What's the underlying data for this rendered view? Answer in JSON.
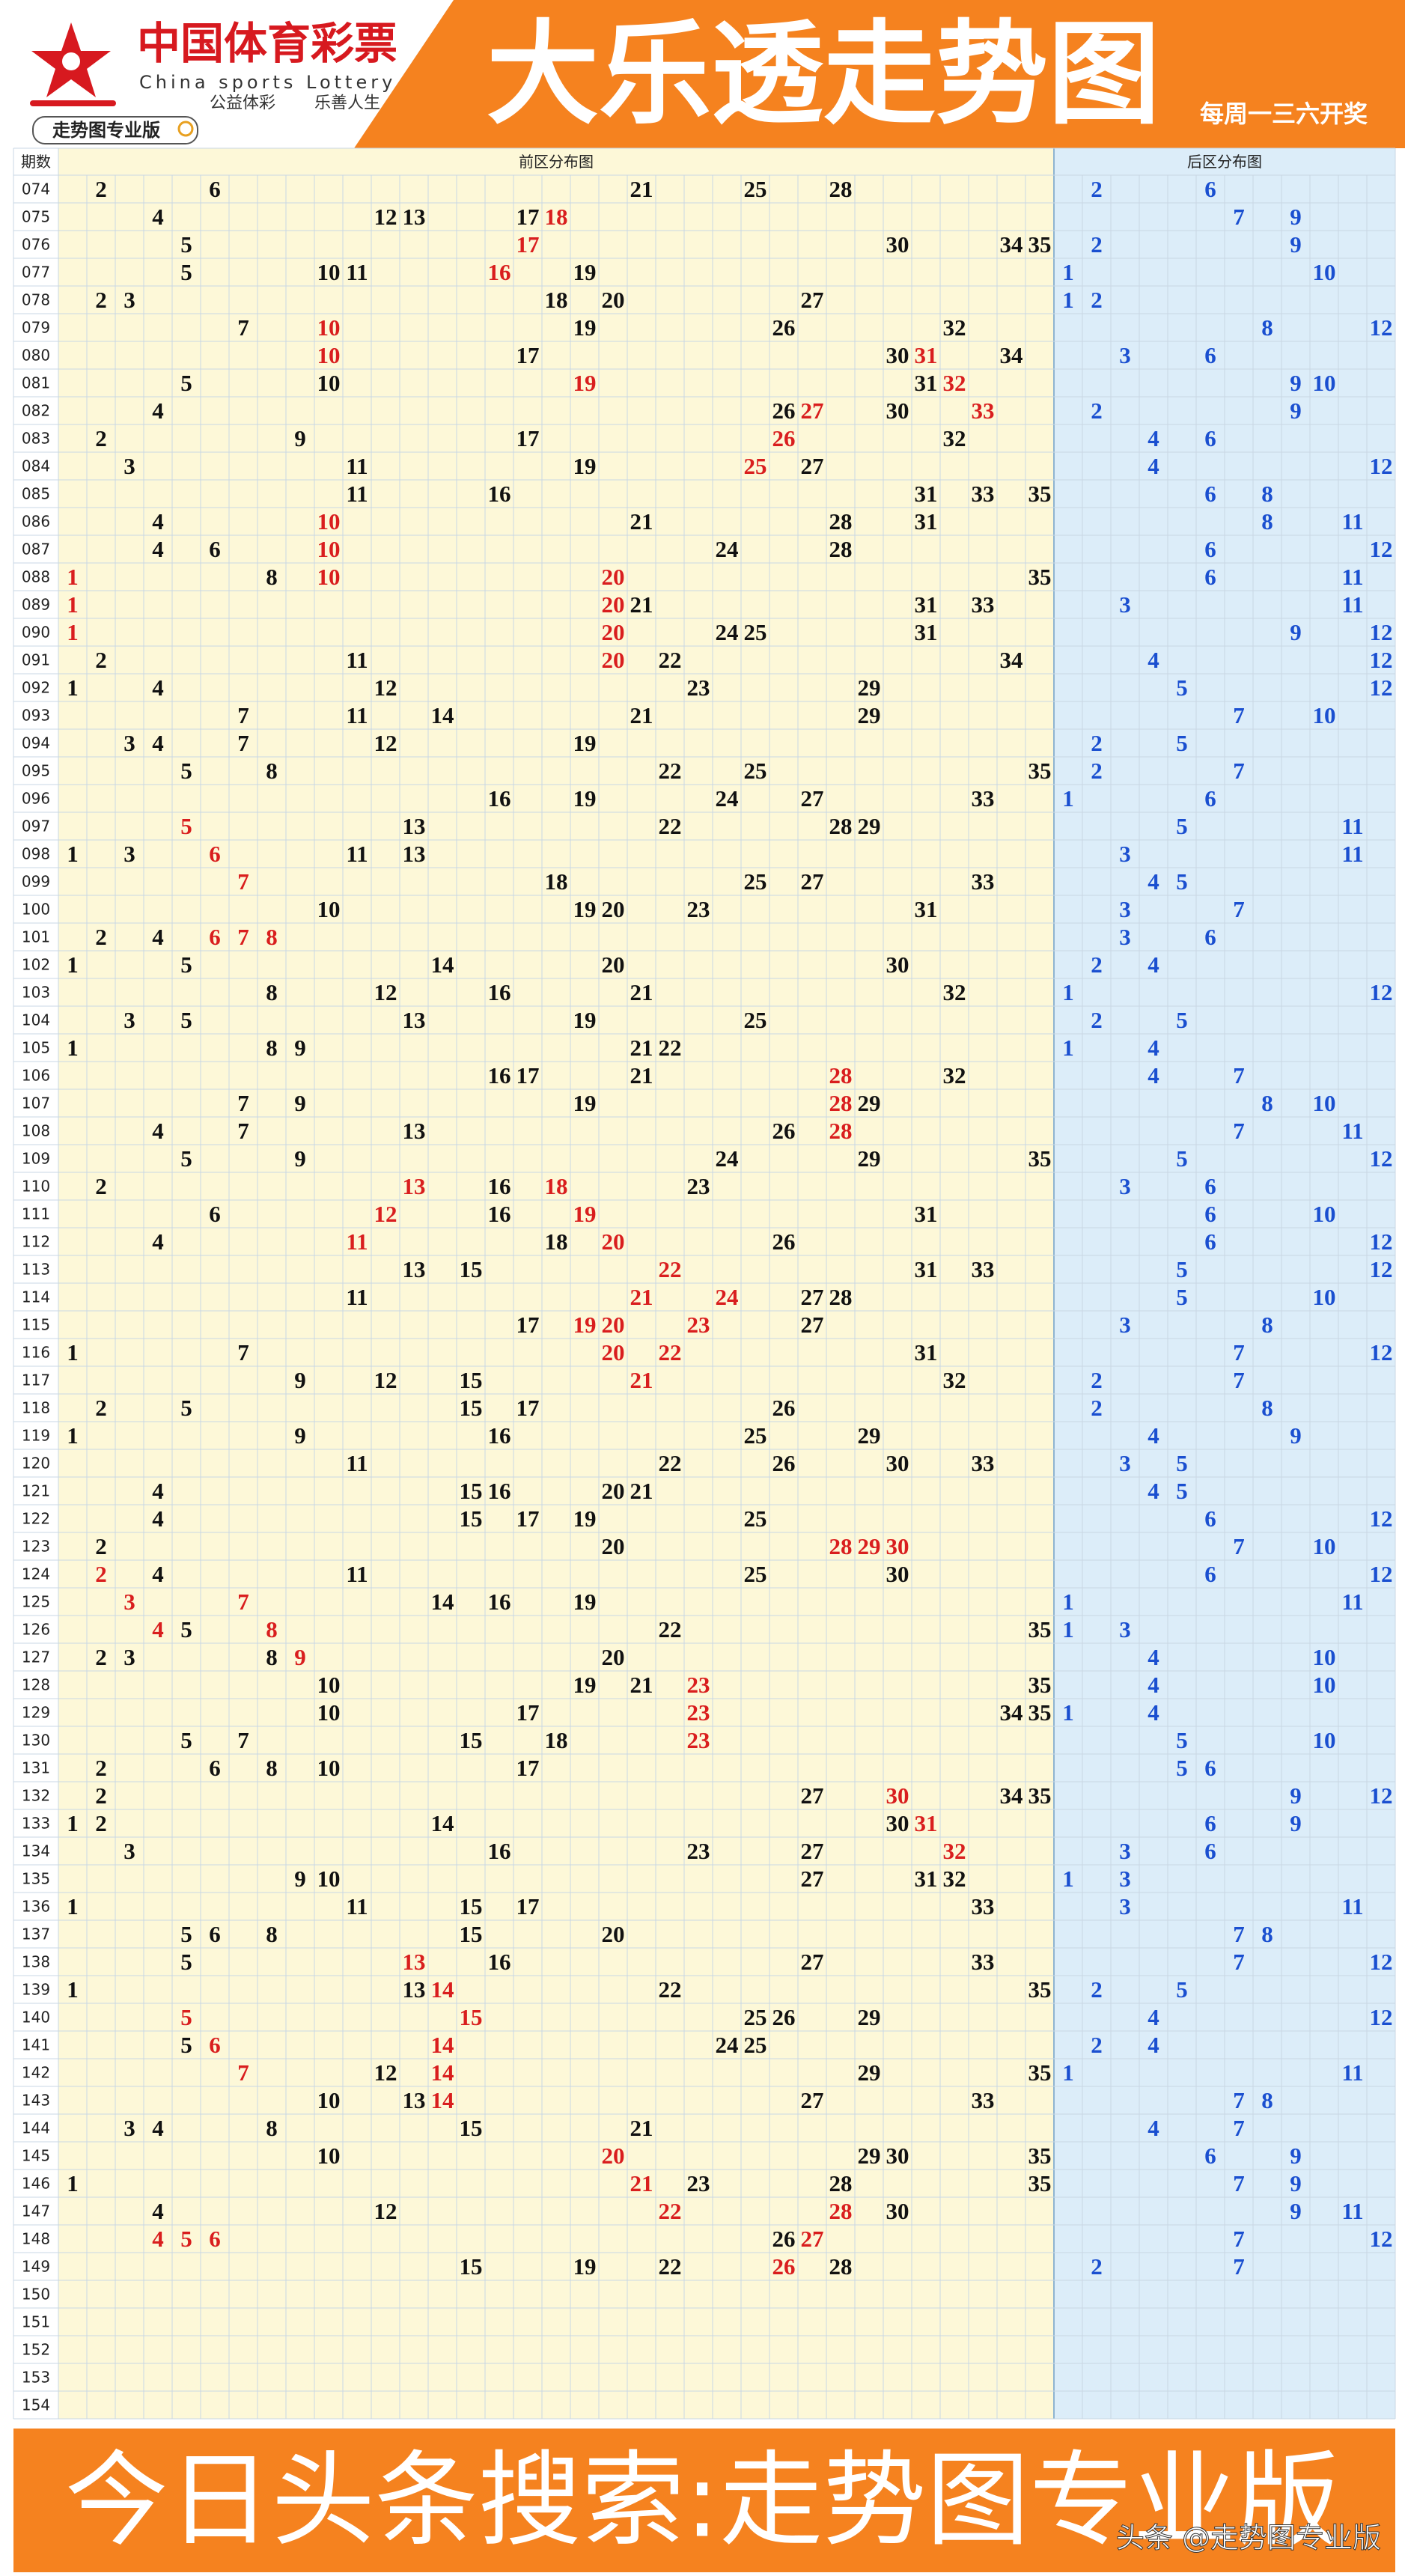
{
  "header": {
    "brand_cn": "中国体育彩票",
    "brand_en": "China sports Lottery",
    "slogan_left": "公益体彩",
    "slogan_right": "乐善人生",
    "badge": "走势图专业版",
    "title": "大乐透走势图",
    "schedule": "每周一三六开奖"
  },
  "table": {
    "issue_header": "期数",
    "front_header": "前区分布图",
    "back_header": "后区分布图",
    "rows": [
      {
        "issue": "074",
        "front": [
          2,
          6,
          21,
          25,
          28
        ],
        "back": [
          2,
          6
        ],
        "red": []
      },
      {
        "issue": "075",
        "front": [
          4,
          12,
          13,
          17,
          18
        ],
        "back": [
          7,
          9
        ],
        "red": [
          4
        ]
      },
      {
        "issue": "076",
        "front": [
          5,
          17,
          30,
          34,
          35
        ],
        "back": [
          2,
          9
        ],
        "red": [
          1
        ]
      },
      {
        "issue": "077",
        "front": [
          5,
          10,
          11,
          16,
          19
        ],
        "back": [
          1,
          10
        ],
        "red": [
          3
        ]
      },
      {
        "issue": "078",
        "front": [
          2,
          3,
          18,
          20,
          27
        ],
        "back": [
          1,
          2
        ],
        "red": []
      },
      {
        "issue": "079",
        "front": [
          7,
          10,
          19,
          26,
          32
        ],
        "back": [
          8,
          12
        ],
        "red": [
          1
        ]
      },
      {
        "issue": "080",
        "front": [
          10,
          17,
          30,
          31,
          34
        ],
        "back": [
          3,
          6
        ],
        "red": [
          0,
          3
        ]
      },
      {
        "issue": "081",
        "front": [
          5,
          10,
          19,
          31,
          32
        ],
        "back": [
          9,
          10
        ],
        "red": [
          2,
          4
        ]
      },
      {
        "issue": "082",
        "front": [
          4,
          26,
          27,
          30,
          33
        ],
        "back": [
          2,
          9
        ],
        "red": [
          2,
          4
        ]
      },
      {
        "issue": "083",
        "front": [
          2,
          9,
          17,
          26,
          32
        ],
        "back": [
          4,
          6
        ],
        "red": [
          3
        ]
      },
      {
        "issue": "084",
        "front": [
          3,
          11,
          19,
          25,
          27
        ],
        "back": [
          4,
          12
        ],
        "red": [
          3
        ]
      },
      {
        "issue": "085",
        "front": [
          11,
          16,
          31,
          33,
          35
        ],
        "back": [
          6,
          8
        ],
        "red": []
      },
      {
        "issue": "086",
        "front": [
          4,
          10,
          21,
          28,
          31
        ],
        "back": [
          8,
          11
        ],
        "red": [
          1
        ]
      },
      {
        "issue": "087",
        "front": [
          4,
          6,
          10,
          24,
          28
        ],
        "back": [
          6,
          12
        ],
        "red": [
          2
        ]
      },
      {
        "issue": "088",
        "front": [
          1,
          8,
          10,
          20,
          35
        ],
        "back": [
          6,
          11
        ],
        "red": [
          0,
          2,
          3
        ]
      },
      {
        "issue": "089",
        "front": [
          1,
          20,
          21,
          31,
          33
        ],
        "back": [
          3,
          11
        ],
        "red": [
          0,
          1
        ]
      },
      {
        "issue": "090",
        "front": [
          1,
          20,
          24,
          25,
          31
        ],
        "back": [
          9,
          12
        ],
        "red": [
          0,
          1
        ]
      },
      {
        "issue": "091",
        "front": [
          2,
          11,
          20,
          22,
          34
        ],
        "back": [
          4,
          12
        ],
        "red": [
          2
        ]
      },
      {
        "issue": "092",
        "front": [
          1,
          4,
          12,
          23,
          29
        ],
        "back": [
          5,
          12
        ],
        "red": []
      },
      {
        "issue": "093",
        "front": [
          7,
          11,
          14,
          21,
          29
        ],
        "back": [
          7,
          10
        ],
        "red": []
      },
      {
        "issue": "094",
        "front": [
          3,
          4,
          7,
          12,
          19
        ],
        "back": [
          2,
          5
        ],
        "red": []
      },
      {
        "issue": "095",
        "front": [
          5,
          8,
          22,
          25,
          35
        ],
        "back": [
          2,
          7
        ],
        "red": []
      },
      {
        "issue": "096",
        "front": [
          16,
          19,
          24,
          27,
          33
        ],
        "back": [
          1,
          6
        ],
        "red": []
      },
      {
        "issue": "097",
        "front": [
          5,
          13,
          22,
          28,
          29
        ],
        "back": [
          5,
          11
        ],
        "red": [
          0
        ]
      },
      {
        "issue": "098",
        "front": [
          1,
          3,
          6,
          11,
          13
        ],
        "back": [
          3,
          11
        ],
        "red": [
          2
        ]
      },
      {
        "issue": "099",
        "front": [
          7,
          18,
          25,
          27,
          33
        ],
        "back": [
          4,
          5
        ],
        "red": [
          0
        ]
      },
      {
        "issue": "100",
        "front": [
          10,
          19,
          20,
          23,
          31
        ],
        "back": [
          3,
          7
        ],
        "red": []
      },
      {
        "issue": "101",
        "front": [
          2,
          4,
          6,
          7,
          8
        ],
        "back": [
          3,
          6
        ],
        "red": [
          2,
          3,
          4
        ]
      },
      {
        "issue": "102",
        "front": [
          1,
          5,
          14,
          20,
          30
        ],
        "back": [
          2,
          4
        ],
        "red": []
      },
      {
        "issue": "103",
        "front": [
          8,
          12,
          16,
          21,
          32
        ],
        "back": [
          1,
          12
        ],
        "red": []
      },
      {
        "issue": "104",
        "front": [
          3,
          5,
          13,
          19,
          25
        ],
        "back": [
          2,
          5
        ],
        "red": []
      },
      {
        "issue": "105",
        "front": [
          1,
          8,
          9,
          21,
          22
        ],
        "back": [
          1,
          4
        ],
        "red": []
      },
      {
        "issue": "106",
        "front": [
          16,
          17,
          21,
          28,
          32
        ],
        "back": [
          4,
          7
        ],
        "red": [
          3
        ]
      },
      {
        "issue": "107",
        "front": [
          7,
          9,
          19,
          28,
          29
        ],
        "back": [
          8,
          10
        ],
        "red": [
          3
        ]
      },
      {
        "issue": "108",
        "front": [
          4,
          7,
          13,
          26,
          28
        ],
        "back": [
          7,
          11
        ],
        "red": [
          4
        ]
      },
      {
        "issue": "109",
        "front": [
          5,
          9,
          24,
          29,
          35
        ],
        "back": [
          5,
          12
        ],
        "red": []
      },
      {
        "issue": "110",
        "front": [
          2,
          13,
          16,
          18,
          23
        ],
        "back": [
          3,
          6
        ],
        "red": [
          1,
          3
        ]
      },
      {
        "issue": "111",
        "front": [
          6,
          12,
          16,
          19,
          31
        ],
        "back": [
          6,
          10
        ],
        "red": [
          1,
          3
        ]
      },
      {
        "issue": "112",
        "front": [
          4,
          11,
          18,
          20,
          26
        ],
        "back": [
          6,
          12
        ],
        "red": [
          1,
          3
        ]
      },
      {
        "issue": "113",
        "front": [
          13,
          15,
          22,
          31,
          33
        ],
        "back": [
          5,
          12
        ],
        "red": [
          2
        ]
      },
      {
        "issue": "114",
        "front": [
          11,
          21,
          24,
          27,
          28
        ],
        "back": [
          5,
          10
        ],
        "red": [
          1,
          2
        ]
      },
      {
        "issue": "115",
        "front": [
          17,
          19,
          20,
          23,
          27
        ],
        "back": [
          3,
          8
        ],
        "red": [
          1,
          2,
          3
        ]
      },
      {
        "issue": "116",
        "front": [
          1,
          7,
          20,
          22,
          31
        ],
        "back": [
          7,
          12
        ],
        "red": [
          2,
          3
        ]
      },
      {
        "issue": "117",
        "front": [
          9,
          12,
          15,
          21,
          32
        ],
        "back": [
          2,
          7
        ],
        "red": [
          3
        ]
      },
      {
        "issue": "118",
        "front": [
          2,
          5,
          15,
          17,
          26
        ],
        "back": [
          2,
          8
        ],
        "red": []
      },
      {
        "issue": "119",
        "front": [
          1,
          9,
          16,
          25,
          29
        ],
        "back": [
          4,
          9
        ],
        "red": []
      },
      {
        "issue": "120",
        "front": [
          11,
          22,
          26,
          30,
          33
        ],
        "back": [
          3,
          5
        ],
        "red": []
      },
      {
        "issue": "121",
        "front": [
          4,
          15,
          16,
          20,
          21
        ],
        "back": [
          4,
          5
        ],
        "red": []
      },
      {
        "issue": "122",
        "front": [
          4,
          15,
          17,
          19,
          25
        ],
        "back": [
          6,
          12
        ],
        "red": []
      },
      {
        "issue": "123",
        "front": [
          2,
          20,
          28,
          29,
          30
        ],
        "back": [
          7,
          10
        ],
        "red": [
          2,
          3,
          4
        ]
      },
      {
        "issue": "124",
        "front": [
          2,
          4,
          11,
          25,
          30
        ],
        "back": [
          6,
          12
        ],
        "red": [
          0
        ]
      },
      {
        "issue": "125",
        "front": [
          3,
          7,
          14,
          16,
          19
        ],
        "back": [
          1,
          11
        ],
        "red": [
          0,
          1
        ]
      },
      {
        "issue": "126",
        "front": [
          4,
          5,
          8,
          22,
          35
        ],
        "back": [
          1,
          3
        ],
        "red": [
          0,
          2
        ]
      },
      {
        "issue": "127",
        "front": [
          2,
          3,
          8,
          9,
          20
        ],
        "back": [
          4,
          10
        ],
        "red": [
          3
        ]
      },
      {
        "issue": "128",
        "front": [
          10,
          19,
          21,
          23,
          35
        ],
        "back": [
          4,
          10
        ],
        "red": [
          3
        ]
      },
      {
        "issue": "129",
        "front": [
          10,
          17,
          23,
          34,
          35
        ],
        "back": [
          1,
          4
        ],
        "red": [
          2
        ]
      },
      {
        "issue": "130",
        "front": [
          5,
          7,
          15,
          18,
          23
        ],
        "back": [
          5,
          10
        ],
        "red": [
          4
        ]
      },
      {
        "issue": "131",
        "front": [
          2,
          6,
          8,
          10,
          17
        ],
        "back": [
          5,
          6
        ],
        "red": []
      },
      {
        "issue": "132",
        "front": [
          2,
          27,
          30,
          34,
          35
        ],
        "back": [
          9,
          12
        ],
        "red": [
          2
        ]
      },
      {
        "issue": "133",
        "front": [
          1,
          2,
          14,
          30,
          31
        ],
        "back": [
          6,
          9
        ],
        "red": [
          4
        ]
      },
      {
        "issue": "134",
        "front": [
          3,
          16,
          23,
          27,
          32
        ],
        "back": [
          3,
          6
        ],
        "red": [
          4
        ]
      },
      {
        "issue": "135",
        "front": [
          9,
          10,
          27,
          31,
          32
        ],
        "back": [
          1,
          3
        ],
        "red": []
      },
      {
        "issue": "136",
        "front": [
          1,
          11,
          15,
          17,
          33
        ],
        "back": [
          3,
          11
        ],
        "red": []
      },
      {
        "issue": "137",
        "front": [
          5,
          6,
          8,
          15,
          20
        ],
        "back": [
          7,
          8
        ],
        "red": []
      },
      {
        "issue": "138",
        "front": [
          5,
          13,
          16,
          27,
          33
        ],
        "back": [
          7,
          12
        ],
        "red": [
          1
        ]
      },
      {
        "issue": "139",
        "front": [
          1,
          13,
          14,
          22,
          35
        ],
        "back": [
          2,
          5
        ],
        "red": [
          2
        ]
      },
      {
        "issue": "140",
        "front": [
          5,
          15,
          25,
          26,
          29
        ],
        "back": [
          4,
          12
        ],
        "red": [
          0,
          1
        ]
      },
      {
        "issue": "141",
        "front": [
          5,
          6,
          14,
          24,
          25
        ],
        "back": [
          2,
          4
        ],
        "red": [
          1,
          2
        ]
      },
      {
        "issue": "142",
        "front": [
          7,
          12,
          14,
          29,
          35
        ],
        "back": [
          1,
          11
        ],
        "red": [
          0,
          2
        ]
      },
      {
        "issue": "143",
        "front": [
          10,
          13,
          14,
          27,
          33
        ],
        "back": [
          7,
          8
        ],
        "red": [
          2
        ]
      },
      {
        "issue": "144",
        "front": [
          3,
          4,
          8,
          15,
          21
        ],
        "back": [
          4,
          7
        ],
        "red": []
      },
      {
        "issue": "145",
        "front": [
          10,
          20,
          29,
          30,
          35
        ],
        "back": [
          6,
          9
        ],
        "red": [
          1
        ]
      },
      {
        "issue": "146",
        "front": [
          1,
          21,
          23,
          28,
          35
        ],
        "back": [
          7,
          9
        ],
        "red": [
          1
        ]
      },
      {
        "issue": "147",
        "front": [
          4,
          12,
          22,
          28,
          30
        ],
        "back": [
          9,
          11
        ],
        "red": [
          2,
          3
        ]
      },
      {
        "issue": "148",
        "front": [
          4,
          5,
          6,
          26,
          27
        ],
        "back": [
          7,
          12
        ],
        "red": [
          0,
          1,
          2,
          4
        ]
      },
      {
        "issue": "149",
        "front": [
          15,
          19,
          22,
          26,
          28
        ],
        "back": [
          2,
          7
        ],
        "red": [
          3
        ]
      },
      {
        "issue": "150",
        "front": [],
        "back": [],
        "red": []
      },
      {
        "issue": "151",
        "front": [],
        "back": [],
        "red": []
      },
      {
        "issue": "152",
        "front": [],
        "back": [],
        "red": []
      },
      {
        "issue": "153",
        "front": [],
        "back": [],
        "red": []
      },
      {
        "issue": "154",
        "front": [],
        "back": [],
        "red": []
      }
    ]
  },
  "footer": {
    "banner": "今日头条搜索:走势图专业版",
    "watermark": "头条 @走势图专业版"
  }
}
